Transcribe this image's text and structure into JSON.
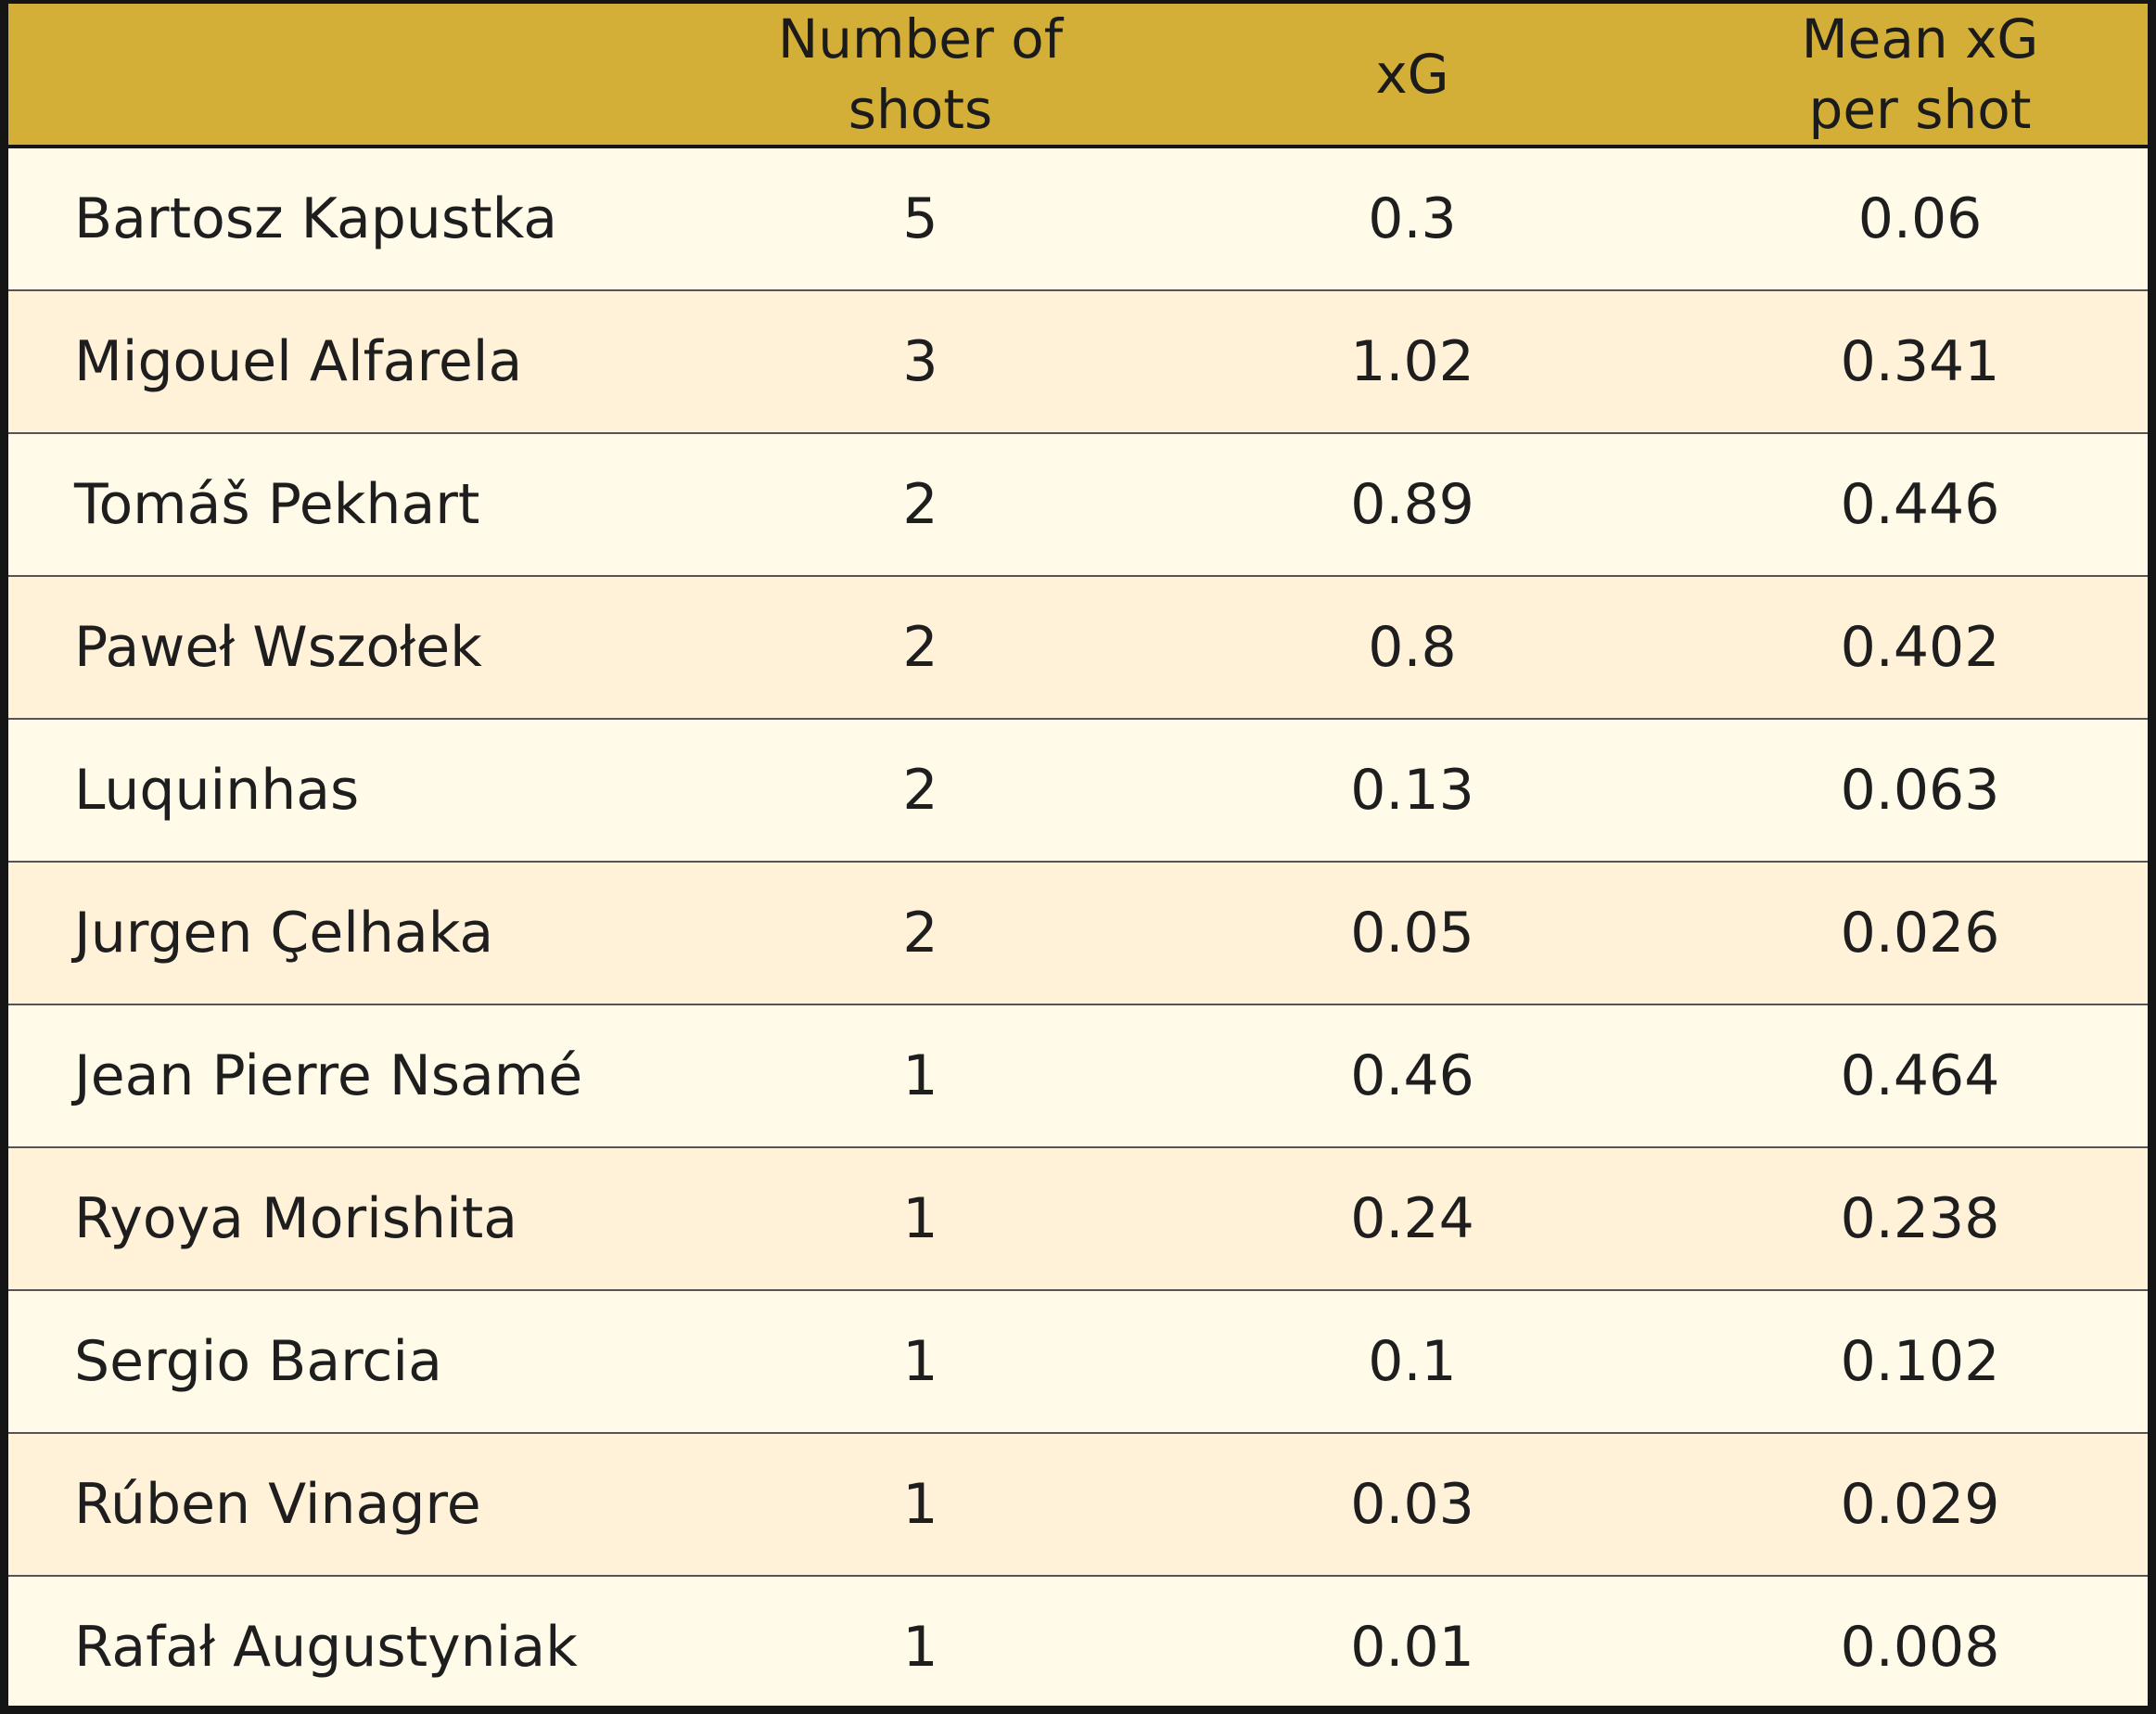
{
  "table": {
    "headers": {
      "player": "",
      "shots": [
        "Number of",
        "shots"
      ],
      "xg": "xG",
      "mean": [
        "Mean xG",
        "per shot"
      ]
    }
  },
  "chart_data": {
    "type": "table",
    "columns": [
      "",
      "Number of shots",
      "xG",
      "Mean xG per shot"
    ],
    "rows": [
      {
        "player": "Bartosz Kapustka",
        "shots": "5",
        "xg": "0.3",
        "mean": "0.06"
      },
      {
        "player": "Migouel Alfarela",
        "shots": "3",
        "xg": "1.02",
        "mean": "0.341"
      },
      {
        "player": "Tomáš Pekhart",
        "shots": "2",
        "xg": "0.89",
        "mean": "0.446"
      },
      {
        "player": "Paweł Wszołek",
        "shots": "2",
        "xg": "0.8",
        "mean": "0.402"
      },
      {
        "player": "Luquinhas",
        "shots": "2",
        "xg": "0.13",
        "mean": "0.063"
      },
      {
        "player": "Jurgen Çelhaka",
        "shots": "2",
        "xg": "0.05",
        "mean": "0.026"
      },
      {
        "player": "Jean Pierre Nsamé",
        "shots": "1",
        "xg": "0.46",
        "mean": "0.464"
      },
      {
        "player": "Ryoya Morishita",
        "shots": "1",
        "xg": "0.24",
        "mean": "0.238"
      },
      {
        "player": "Sergio Barcia",
        "shots": "1",
        "xg": "0.1",
        "mean": "0.102"
      },
      {
        "player": "Rúben Vinagre",
        "shots": "1",
        "xg": "0.03",
        "mean": "0.029"
      },
      {
        "player": "Rafał Augustyniak",
        "shots": "1",
        "xg": "0.01",
        "mean": "0.008"
      }
    ]
  },
  "colors": {
    "header_bg": "#d4af37",
    "row_light": "#fffbe8",
    "row_dark": "#fff2d9",
    "text": "#1e1e1e",
    "frame": "#151515"
  }
}
